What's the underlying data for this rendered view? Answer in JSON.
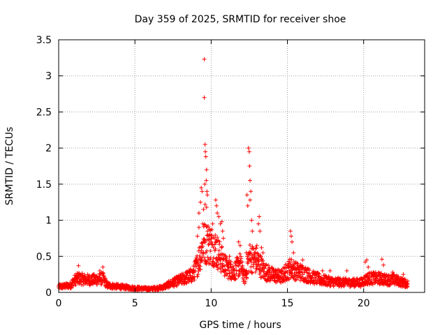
{
  "chart_data": {
    "type": "scatter",
    "title": "Day 359 of 2025, SRMTID for receiver shoe",
    "xlabel": "GPS time / hours",
    "ylabel": "SRMTID / TECUs",
    "xlim": [
      0,
      24
    ],
    "ylim": [
      0,
      3.5
    ],
    "xticks": [
      0,
      5,
      10,
      15,
      20
    ],
    "yticks": [
      0,
      0.5,
      1,
      1.5,
      2,
      2.5,
      3,
      3.5
    ],
    "xtick_labels": [
      "0",
      "5",
      "10",
      "15",
      "20"
    ],
    "ytick_labels": [
      "0",
      "0.5",
      "1",
      "1.5",
      "2",
      "2.5",
      "3",
      "3.5"
    ],
    "grid": true,
    "marker": "+",
    "color": "#ff0000",
    "x_end": 22.9,
    "baseline_profile": [
      [
        0,
        0.08
      ],
      [
        0.8,
        0.1
      ],
      [
        1.0,
        0.17
      ],
      [
        1.3,
        0.2
      ],
      [
        1.8,
        0.18
      ],
      [
        2.3,
        0.18
      ],
      [
        2.9,
        0.2
      ],
      [
        3.2,
        0.1
      ],
      [
        4.0,
        0.08
      ],
      [
        5.0,
        0.06
      ],
      [
        6.0,
        0.05
      ],
      [
        6.8,
        0.07
      ],
      [
        7.3,
        0.12
      ],
      [
        8.0,
        0.18
      ],
      [
        8.8,
        0.25
      ],
      [
        9.1,
        0.4
      ],
      [
        9.5,
        0.7
      ],
      [
        9.8,
        0.7
      ],
      [
        10.2,
        0.65
      ],
      [
        10.6,
        0.5
      ],
      [
        11.0,
        0.35
      ],
      [
        11.5,
        0.3
      ],
      [
        11.9,
        0.4
      ],
      [
        12.2,
        0.2
      ],
      [
        12.5,
        0.5
      ],
      [
        13.0,
        0.45
      ],
      [
        13.5,
        0.3
      ],
      [
        14.0,
        0.25
      ],
      [
        14.6,
        0.22
      ],
      [
        15.2,
        0.35
      ],
      [
        15.6,
        0.3
      ],
      [
        16.0,
        0.28
      ],
      [
        16.6,
        0.22
      ],
      [
        17.2,
        0.18
      ],
      [
        18.0,
        0.15
      ],
      [
        19.0,
        0.14
      ],
      [
        19.8,
        0.14
      ],
      [
        20.3,
        0.2
      ],
      [
        21.0,
        0.2
      ],
      [
        21.5,
        0.18
      ],
      [
        22.0,
        0.18
      ],
      [
        22.9,
        0.12
      ]
    ],
    "points": [
      [
        1.3,
        0.37
      ],
      [
        2.9,
        0.35
      ],
      [
        2.7,
        0.3
      ],
      [
        9.1,
        0.78
      ],
      [
        9.2,
        0.9
      ],
      [
        9.2,
        1.1
      ],
      [
        9.3,
        1.25
      ],
      [
        9.35,
        1.45
      ],
      [
        9.4,
        1.4
      ],
      [
        9.45,
        0.95
      ],
      [
        9.5,
        1.15
      ],
      [
        9.55,
        3.23
      ],
      [
        9.55,
        2.7
      ],
      [
        9.6,
        2.05
      ],
      [
        9.62,
        1.95
      ],
      [
        9.65,
        1.88
      ],
      [
        9.7,
        1.7
      ],
      [
        9.68,
        1.55
      ],
      [
        9.58,
        1.5
      ],
      [
        9.72,
        1.4
      ],
      [
        9.75,
        1.35
      ],
      [
        9.6,
        1.22
      ],
      [
        9.7,
        1.18
      ],
      [
        9.8,
        0.9
      ],
      [
        9.85,
        0.78
      ],
      [
        9.9,
        0.8
      ],
      [
        10.0,
        0.7
      ],
      [
        10.1,
        0.95
      ],
      [
        10.3,
        1.28
      ],
      [
        10.35,
        1.2
      ],
      [
        10.4,
        1.1
      ],
      [
        10.5,
        1.05
      ],
      [
        10.6,
        0.95
      ],
      [
        10.7,
        0.98
      ],
      [
        10.75,
        0.85
      ],
      [
        10.8,
        0.75
      ],
      [
        11.2,
        0.5
      ],
      [
        11.8,
        0.7
      ],
      [
        11.9,
        0.65
      ],
      [
        12.3,
        0.55
      ],
      [
        12.35,
        1.35
      ],
      [
        12.4,
        1.2
      ],
      [
        12.45,
        2.0
      ],
      [
        12.5,
        1.95
      ],
      [
        12.52,
        1.75
      ],
      [
        12.55,
        1.55
      ],
      [
        12.6,
        1.4
      ],
      [
        12.55,
        1.28
      ],
      [
        12.65,
        1.0
      ],
      [
        12.7,
        0.85
      ],
      [
        12.9,
        0.55
      ],
      [
        13.0,
        0.65
      ],
      [
        13.1,
        0.95
      ],
      [
        13.15,
        1.05
      ],
      [
        13.2,
        0.85
      ],
      [
        13.3,
        0.62
      ],
      [
        13.4,
        0.55
      ],
      [
        15.2,
        0.85
      ],
      [
        15.25,
        0.78
      ],
      [
        15.3,
        0.7
      ],
      [
        15.4,
        0.55
      ],
      [
        16.0,
        0.45
      ],
      [
        17.3,
        0.3
      ],
      [
        17.8,
        0.3
      ],
      [
        18.9,
        0.3
      ],
      [
        20.1,
        0.42
      ],
      [
        20.2,
        0.45
      ],
      [
        20.3,
        0.35
      ],
      [
        21.2,
        0.46
      ],
      [
        21.3,
        0.38
      ],
      [
        21.9,
        0.28
      ],
      [
        22.6,
        0.25
      ]
    ]
  }
}
